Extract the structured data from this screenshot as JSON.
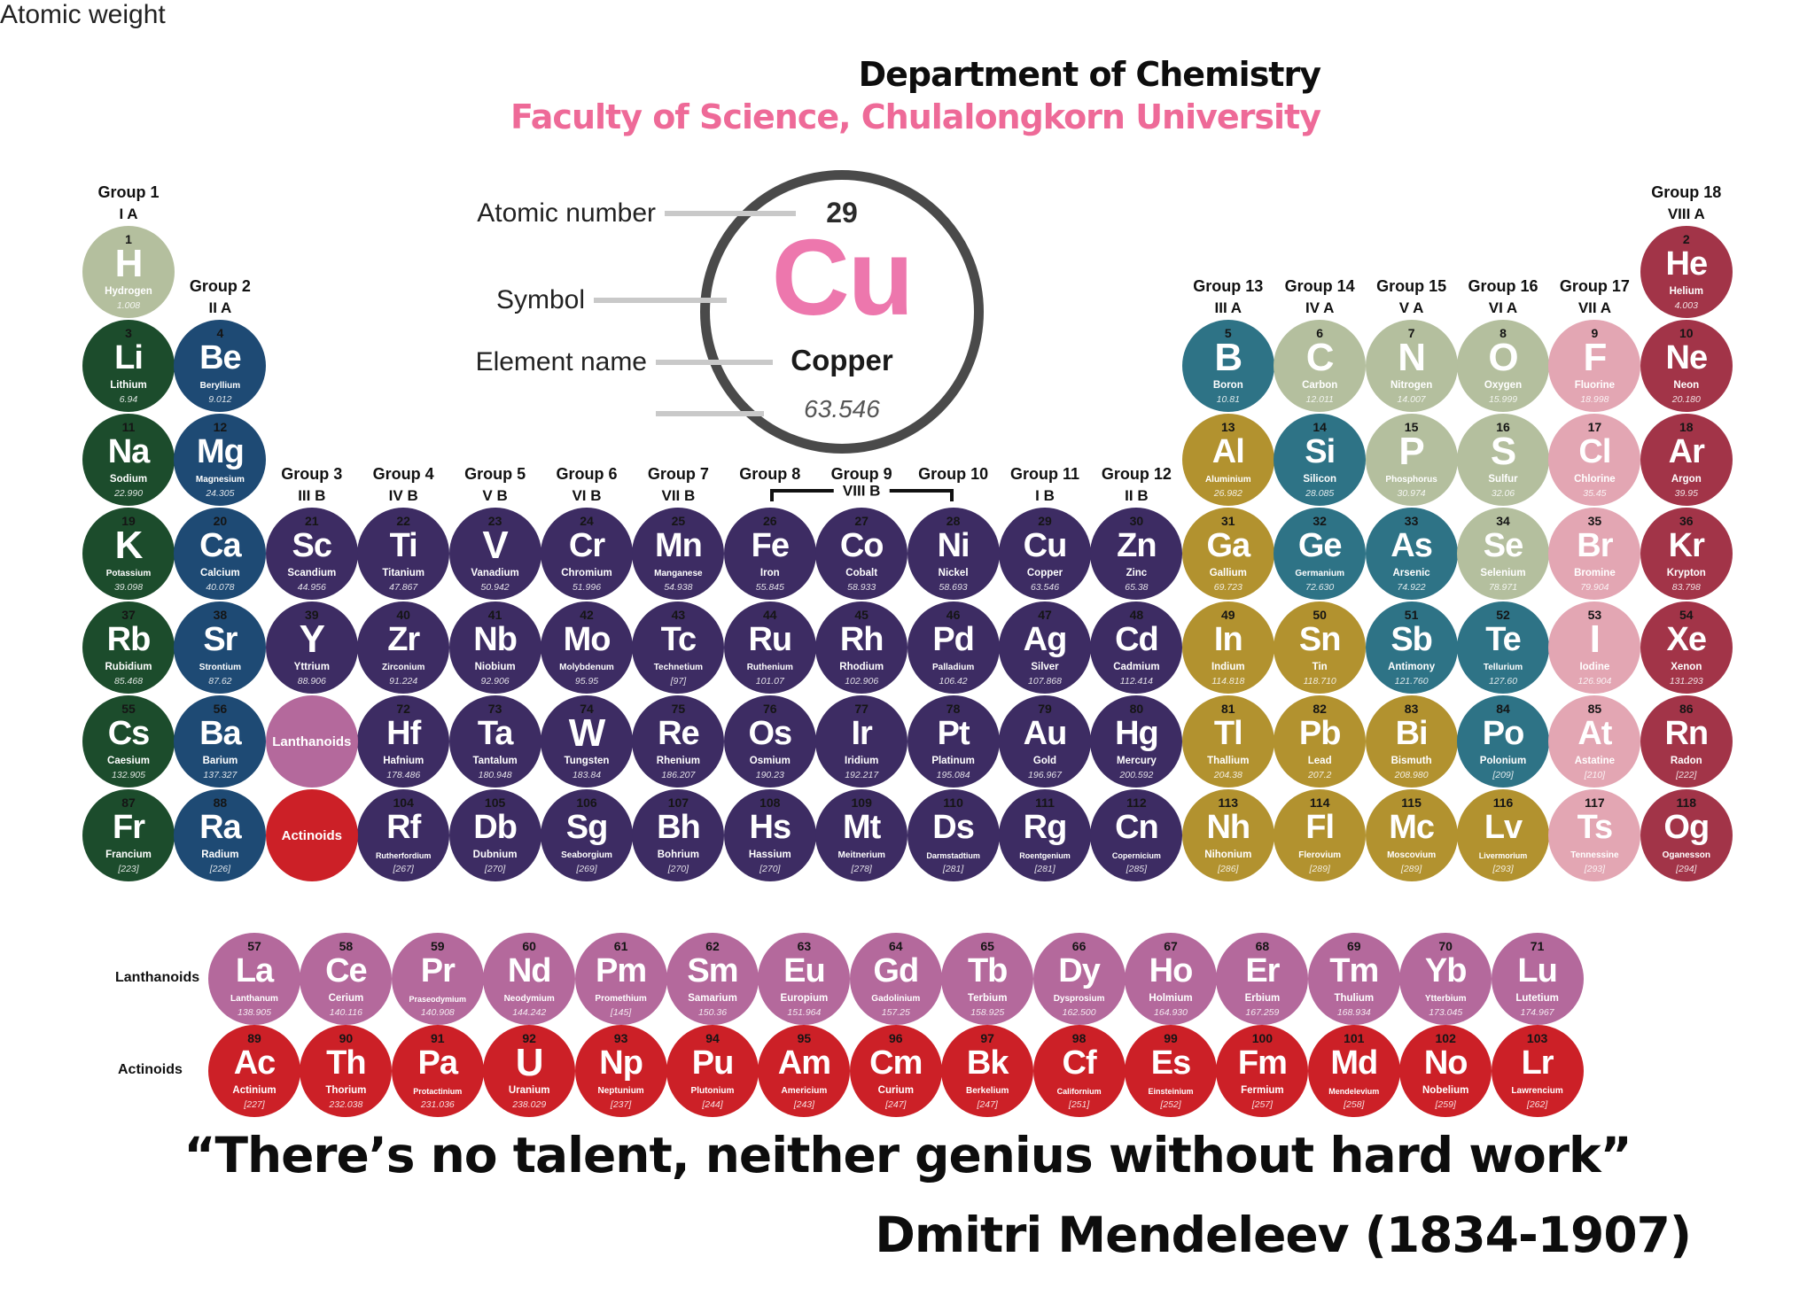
{
  "header": {
    "department": "Department of Chemistry",
    "faculty": "Faculty of Science, Chulalongkorn University"
  },
  "colors": {
    "sage": "#b4bf9e",
    "green": "#1c4c2c",
    "navy": "#1e4a74",
    "purple": "#3d2c63",
    "gold": "#b2922f",
    "teal": "#2e7386",
    "pink": "#e3a6b3",
    "maroon": "#a23448",
    "mauve": "#b4699c",
    "red": "#cc2027"
  },
  "legend": {
    "atomic_number_label": "Atomic number",
    "symbol_label": "Symbol",
    "element_name_label": "Element name",
    "atomic_weight_label": "Atomic weight",
    "number": "29",
    "symbol": "Cu",
    "name": "Copper",
    "weight": "63.546",
    "symbol_color": "#ed77ad"
  },
  "group_headers": [
    {
      "col": 1,
      "row": 1,
      "title": "Group 1",
      "sub": "I A"
    },
    {
      "col": 2,
      "row": 2,
      "title": "Group 2",
      "sub": "II A"
    },
    {
      "col": 3,
      "row": 4,
      "title": "Group 3",
      "sub": "III B"
    },
    {
      "col": 4,
      "row": 4,
      "title": "Group 4",
      "sub": "IV B"
    },
    {
      "col": 5,
      "row": 4,
      "title": "Group 5",
      "sub": "V B"
    },
    {
      "col": 6,
      "row": 4,
      "title": "Group 6",
      "sub": "VI B"
    },
    {
      "col": 7,
      "row": 4,
      "title": "Group 7",
      "sub": "VII B"
    },
    {
      "col": 8,
      "row": 4,
      "title": "Group 8",
      "sub": ""
    },
    {
      "col": 9,
      "row": 4,
      "title": "Group 9",
      "sub": ""
    },
    {
      "col": 10,
      "row": 4,
      "title": "Group 10",
      "sub": ""
    },
    {
      "col": 11,
      "row": 4,
      "title": "Group 11",
      "sub": "I B"
    },
    {
      "col": 12,
      "row": 4,
      "title": "Group 12",
      "sub": "II B"
    },
    {
      "col": 13,
      "row": 2,
      "title": "Group 13",
      "sub": "III A"
    },
    {
      "col": 14,
      "row": 2,
      "title": "Group 14",
      "sub": "IV A"
    },
    {
      "col": 15,
      "row": 2,
      "title": "Group 15",
      "sub": "V A"
    },
    {
      "col": 16,
      "row": 2,
      "title": "Group 16",
      "sub": "VI A"
    },
    {
      "col": 17,
      "row": 2,
      "title": "Group 17",
      "sub": "VII A"
    },
    {
      "col": 18,
      "row": 1,
      "title": "Group 18",
      "sub": "VIII A"
    }
  ],
  "viiib_bracket_label": "VIII B",
  "series_labels": {
    "lanthanoids": "Lanthanoids",
    "actinoids": "Actinoids"
  },
  "placeholders": [
    {
      "row": 6,
      "col": 3,
      "label": "Lanthanoids",
      "cat": "mauve"
    },
    {
      "row": 7,
      "col": 3,
      "label": "Actinoids",
      "cat": "red"
    }
  ],
  "elements": [
    {
      "n": 1,
      "s": "H",
      "name": "Hydrogen",
      "w": "1.008",
      "cat": "sage",
      "row": 1,
      "col": 1
    },
    {
      "n": 2,
      "s": "He",
      "name": "Helium",
      "w": "4.003",
      "cat": "maroon",
      "row": 1,
      "col": 18
    },
    {
      "n": 3,
      "s": "Li",
      "name": "Lithium",
      "w": "6.94",
      "cat": "green",
      "row": 2,
      "col": 1
    },
    {
      "n": 4,
      "s": "Be",
      "name": "Beryllium",
      "w": "9.012",
      "cat": "navy",
      "row": 2,
      "col": 2
    },
    {
      "n": 5,
      "s": "B",
      "name": "Boron",
      "w": "10.81",
      "cat": "teal",
      "row": 2,
      "col": 13
    },
    {
      "n": 6,
      "s": "C",
      "name": "Carbon",
      "w": "12.011",
      "cat": "sage",
      "row": 2,
      "col": 14
    },
    {
      "n": 7,
      "s": "N",
      "name": "Nitrogen",
      "w": "14.007",
      "cat": "sage",
      "row": 2,
      "col": 15
    },
    {
      "n": 8,
      "s": "O",
      "name": "Oxygen",
      "w": "15.999",
      "cat": "sage",
      "row": 2,
      "col": 16
    },
    {
      "n": 9,
      "s": "F",
      "name": "Fluorine",
      "w": "18.998",
      "cat": "pink",
      "row": 2,
      "col": 17
    },
    {
      "n": 10,
      "s": "Ne",
      "name": "Neon",
      "w": "20.180",
      "cat": "maroon",
      "row": 2,
      "col": 18
    },
    {
      "n": 11,
      "s": "Na",
      "name": "Sodium",
      "w": "22.990",
      "cat": "green",
      "row": 3,
      "col": 1
    },
    {
      "n": 12,
      "s": "Mg",
      "name": "Magnesium",
      "w": "24.305",
      "cat": "navy",
      "row": 3,
      "col": 2
    },
    {
      "n": 13,
      "s": "Al",
      "name": "Aluminium",
      "w": "26.982",
      "cat": "gold",
      "row": 3,
      "col": 13
    },
    {
      "n": 14,
      "s": "Si",
      "name": "Silicon",
      "w": "28.085",
      "cat": "teal",
      "row": 3,
      "col": 14
    },
    {
      "n": 15,
      "s": "P",
      "name": "Phosphorus",
      "w": "30.974",
      "cat": "sage",
      "row": 3,
      "col": 15
    },
    {
      "n": 16,
      "s": "S",
      "name": "Sulfur",
      "w": "32.06",
      "cat": "sage",
      "row": 3,
      "col": 16
    },
    {
      "n": 17,
      "s": "Cl",
      "name": "Chlorine",
      "w": "35.45",
      "cat": "pink",
      "row": 3,
      "col": 17
    },
    {
      "n": 18,
      "s": "Ar",
      "name": "Argon",
      "w": "39.95",
      "cat": "maroon",
      "row": 3,
      "col": 18
    },
    {
      "n": 19,
      "s": "K",
      "name": "Potassium",
      "w": "39.098",
      "cat": "green",
      "row": 4,
      "col": 1
    },
    {
      "n": 20,
      "s": "Ca",
      "name": "Calcium",
      "w": "40.078",
      "cat": "navy",
      "row": 4,
      "col": 2
    },
    {
      "n": 21,
      "s": "Sc",
      "name": "Scandium",
      "w": "44.956",
      "cat": "purple",
      "row": 4,
      "col": 3
    },
    {
      "n": 22,
      "s": "Ti",
      "name": "Titanium",
      "w": "47.867",
      "cat": "purple",
      "row": 4,
      "col": 4
    },
    {
      "n": 23,
      "s": "V",
      "name": "Vanadium",
      "w": "50.942",
      "cat": "purple",
      "row": 4,
      "col": 5
    },
    {
      "n": 24,
      "s": "Cr",
      "name": "Chromium",
      "w": "51.996",
      "cat": "purple",
      "row": 4,
      "col": 6
    },
    {
      "n": 25,
      "s": "Mn",
      "name": "Manganese",
      "w": "54.938",
      "cat": "purple",
      "row": 4,
      "col": 7
    },
    {
      "n": 26,
      "s": "Fe",
      "name": "Iron",
      "w": "55.845",
      "cat": "purple",
      "row": 4,
      "col": 8
    },
    {
      "n": 27,
      "s": "Co",
      "name": "Cobalt",
      "w": "58.933",
      "cat": "purple",
      "row": 4,
      "col": 9
    },
    {
      "n": 28,
      "s": "Ni",
      "name": "Nickel",
      "w": "58.693",
      "cat": "purple",
      "row": 4,
      "col": 10
    },
    {
      "n": 29,
      "s": "Cu",
      "name": "Copper",
      "w": "63.546",
      "cat": "purple",
      "row": 4,
      "col": 11
    },
    {
      "n": 30,
      "s": "Zn",
      "name": "Zinc",
      "w": "65.38",
      "cat": "purple",
      "row": 4,
      "col": 12
    },
    {
      "n": 31,
      "s": "Ga",
      "name": "Gallium",
      "w": "69.723",
      "cat": "gold",
      "row": 4,
      "col": 13
    },
    {
      "n": 32,
      "s": "Ge",
      "name": "Germanium",
      "w": "72.630",
      "cat": "teal",
      "row": 4,
      "col": 14
    },
    {
      "n": 33,
      "s": "As",
      "name": "Arsenic",
      "w": "74.922",
      "cat": "teal",
      "row": 4,
      "col": 15
    },
    {
      "n": 34,
      "s": "Se",
      "name": "Selenium",
      "w": "78.971",
      "cat": "sage",
      "row": 4,
      "col": 16
    },
    {
      "n": 35,
      "s": "Br",
      "name": "Bromine",
      "w": "79.904",
      "cat": "pink",
      "row": 4,
      "col": 17
    },
    {
      "n": 36,
      "s": "Kr",
      "name": "Krypton",
      "w": "83.798",
      "cat": "maroon",
      "row": 4,
      "col": 18
    },
    {
      "n": 37,
      "s": "Rb",
      "name": "Rubidium",
      "w": "85.468",
      "cat": "green",
      "row": 5,
      "col": 1
    },
    {
      "n": 38,
      "s": "Sr",
      "name": "Strontium",
      "w": "87.62",
      "cat": "navy",
      "row": 5,
      "col": 2
    },
    {
      "n": 39,
      "s": "Y",
      "name": "Yttrium",
      "w": "88.906",
      "cat": "purple",
      "row": 5,
      "col": 3
    },
    {
      "n": 40,
      "s": "Zr",
      "name": "Zirconium",
      "w": "91.224",
      "cat": "purple",
      "row": 5,
      "col": 4
    },
    {
      "n": 41,
      "s": "Nb",
      "name": "Niobium",
      "w": "92.906",
      "cat": "purple",
      "row": 5,
      "col": 5
    },
    {
      "n": 42,
      "s": "Mo",
      "name": "Molybdenum",
      "w": "95.95",
      "cat": "purple",
      "row": 5,
      "col": 6
    },
    {
      "n": 43,
      "s": "Tc",
      "name": "Technetium",
      "w": "[97]",
      "cat": "purple",
      "row": 5,
      "col": 7
    },
    {
      "n": 44,
      "s": "Ru",
      "name": "Ruthenium",
      "w": "101.07",
      "cat": "purple",
      "row": 5,
      "col": 8
    },
    {
      "n": 45,
      "s": "Rh",
      "name": "Rhodium",
      "w": "102.906",
      "cat": "purple",
      "row": 5,
      "col": 9
    },
    {
      "n": 46,
      "s": "Pd",
      "name": "Palladium",
      "w": "106.42",
      "cat": "purple",
      "row": 5,
      "col": 10
    },
    {
      "n": 47,
      "s": "Ag",
      "name": "Silver",
      "w": "107.868",
      "cat": "purple",
      "row": 5,
      "col": 11
    },
    {
      "n": 48,
      "s": "Cd",
      "name": "Cadmium",
      "w": "112.414",
      "cat": "purple",
      "row": 5,
      "col": 12
    },
    {
      "n": 49,
      "s": "In",
      "name": "Indium",
      "w": "114.818",
      "cat": "gold",
      "row": 5,
      "col": 13
    },
    {
      "n": 50,
      "s": "Sn",
      "name": "Tin",
      "w": "118.710",
      "cat": "gold",
      "row": 5,
      "col": 14
    },
    {
      "n": 51,
      "s": "Sb",
      "name": "Antimony",
      "w": "121.760",
      "cat": "teal",
      "row": 5,
      "col": 15
    },
    {
      "n": 52,
      "s": "Te",
      "name": "Tellurium",
      "w": "127.60",
      "cat": "teal",
      "row": 5,
      "col": 16
    },
    {
      "n": 53,
      "s": "I",
      "name": "Iodine",
      "w": "126.904",
      "cat": "pink",
      "row": 5,
      "col": 17
    },
    {
      "n": 54,
      "s": "Xe",
      "name": "Xenon",
      "w": "131.293",
      "cat": "maroon",
      "row": 5,
      "col": 18
    },
    {
      "n": 55,
      "s": "Cs",
      "name": "Caesium",
      "w": "132.905",
      "cat": "green",
      "row": 6,
      "col": 1
    },
    {
      "n": 56,
      "s": "Ba",
      "name": "Barium",
      "w": "137.327",
      "cat": "navy",
      "row": 6,
      "col": 2
    },
    {
      "n": 72,
      "s": "Hf",
      "name": "Hafnium",
      "w": "178.486",
      "cat": "purple",
      "row": 6,
      "col": 4
    },
    {
      "n": 73,
      "s": "Ta",
      "name": "Tantalum",
      "w": "180.948",
      "cat": "purple",
      "row": 6,
      "col": 5
    },
    {
      "n": 74,
      "s": "W",
      "name": "Tungsten",
      "w": "183.84",
      "cat": "purple",
      "row": 6,
      "col": 6
    },
    {
      "n": 75,
      "s": "Re",
      "name": "Rhenium",
      "w": "186.207",
      "cat": "purple",
      "row": 6,
      "col": 7
    },
    {
      "n": 76,
      "s": "Os",
      "name": "Osmium",
      "w": "190.23",
      "cat": "purple",
      "row": 6,
      "col": 8
    },
    {
      "n": 77,
      "s": "Ir",
      "name": "Iridium",
      "w": "192.217",
      "cat": "purple",
      "row": 6,
      "col": 9
    },
    {
      "n": 78,
      "s": "Pt",
      "name": "Platinum",
      "w": "195.084",
      "cat": "purple",
      "row": 6,
      "col": 10
    },
    {
      "n": 79,
      "s": "Au",
      "name": "Gold",
      "w": "196.967",
      "cat": "purple",
      "row": 6,
      "col": 11
    },
    {
      "n": 80,
      "s": "Hg",
      "name": "Mercury",
      "w": "200.592",
      "cat": "purple",
      "row": 6,
      "col": 12
    },
    {
      "n": 81,
      "s": "Tl",
      "name": "Thallium",
      "w": "204.38",
      "cat": "gold",
      "row": 6,
      "col": 13
    },
    {
      "n": 82,
      "s": "Pb",
      "name": "Lead",
      "w": "207.2",
      "cat": "gold",
      "row": 6,
      "col": 14
    },
    {
      "n": 83,
      "s": "Bi",
      "name": "Bismuth",
      "w": "208.980",
      "cat": "gold",
      "row": 6,
      "col": 15
    },
    {
      "n": 84,
      "s": "Po",
      "name": "Polonium",
      "w": "[209]",
      "cat": "teal",
      "row": 6,
      "col": 16
    },
    {
      "n": 85,
      "s": "At",
      "name": "Astatine",
      "w": "[210]",
      "cat": "pink",
      "row": 6,
      "col": 17
    },
    {
      "n": 86,
      "s": "Rn",
      "name": "Radon",
      "w": "[222]",
      "cat": "maroon",
      "row": 6,
      "col": 18
    },
    {
      "n": 87,
      "s": "Fr",
      "name": "Francium",
      "w": "[223]",
      "cat": "green",
      "row": 7,
      "col": 1
    },
    {
      "n": 88,
      "s": "Ra",
      "name": "Radium",
      "w": "[226]",
      "cat": "navy",
      "row": 7,
      "col": 2
    },
    {
      "n": 104,
      "s": "Rf",
      "name": "Rutherfordium",
      "w": "[267]",
      "cat": "purple",
      "row": 7,
      "col": 4
    },
    {
      "n": 105,
      "s": "Db",
      "name": "Dubnium",
      "w": "[270]",
      "cat": "purple",
      "row": 7,
      "col": 5
    },
    {
      "n": 106,
      "s": "Sg",
      "name": "Seaborgium",
      "w": "[269]",
      "cat": "purple",
      "row": 7,
      "col": 6
    },
    {
      "n": 107,
      "s": "Bh",
      "name": "Bohrium",
      "w": "[270]",
      "cat": "purple",
      "row": 7,
      "col": 7
    },
    {
      "n": 108,
      "s": "Hs",
      "name": "Hassium",
      "w": "[270]",
      "cat": "purple",
      "row": 7,
      "col": 8
    },
    {
      "n": 109,
      "s": "Mt",
      "name": "Meitnerium",
      "w": "[278]",
      "cat": "purple",
      "row": 7,
      "col": 9
    },
    {
      "n": 110,
      "s": "Ds",
      "name": "Darmstadtium",
      "w": "[281]",
      "cat": "purple",
      "row": 7,
      "col": 10
    },
    {
      "n": 111,
      "s": "Rg",
      "name": "Roentgenium",
      "w": "[281]",
      "cat": "purple",
      "row": 7,
      "col": 11
    },
    {
      "n": 112,
      "s": "Cn",
      "name": "Copernicium",
      "w": "[285]",
      "cat": "purple",
      "row": 7,
      "col": 12
    },
    {
      "n": 113,
      "s": "Nh",
      "name": "Nihonium",
      "w": "[286]",
      "cat": "gold",
      "row": 7,
      "col": 13
    },
    {
      "n": 114,
      "s": "Fl",
      "name": "Flerovium",
      "w": "[289]",
      "cat": "gold",
      "row": 7,
      "col": 14
    },
    {
      "n": 115,
      "s": "Mc",
      "name": "Moscovium",
      "w": "[289]",
      "cat": "gold",
      "row": 7,
      "col": 15
    },
    {
      "n": 116,
      "s": "Lv",
      "name": "Livermorium",
      "w": "[293]",
      "cat": "gold",
      "row": 7,
      "col": 16
    },
    {
      "n": 117,
      "s": "Ts",
      "name": "Tennessine",
      "w": "[293]",
      "cat": "pink",
      "row": 7,
      "col": 17
    },
    {
      "n": 118,
      "s": "Og",
      "name": "Oganesson",
      "w": "[294]",
      "cat": "maroon",
      "row": 7,
      "col": 18
    }
  ],
  "lanthanoids": [
    {
      "n": 57,
      "s": "La",
      "name": "Lanthanum",
      "w": "138.905",
      "cat": "mauve"
    },
    {
      "n": 58,
      "s": "Ce",
      "name": "Cerium",
      "w": "140.116",
      "cat": "mauve"
    },
    {
      "n": 59,
      "s": "Pr",
      "name": "Praseodymium",
      "w": "140.908",
      "cat": "mauve"
    },
    {
      "n": 60,
      "s": "Nd",
      "name": "Neodymium",
      "w": "144.242",
      "cat": "mauve"
    },
    {
      "n": 61,
      "s": "Pm",
      "name": "Promethium",
      "w": "[145]",
      "cat": "mauve"
    },
    {
      "n": 62,
      "s": "Sm",
      "name": "Samarium",
      "w": "150.36",
      "cat": "mauve"
    },
    {
      "n": 63,
      "s": "Eu",
      "name": "Europium",
      "w": "151.964",
      "cat": "mauve"
    },
    {
      "n": 64,
      "s": "Gd",
      "name": "Gadolinium",
      "w": "157.25",
      "cat": "mauve"
    },
    {
      "n": 65,
      "s": "Tb",
      "name": "Terbium",
      "w": "158.925",
      "cat": "mauve"
    },
    {
      "n": 66,
      "s": "Dy",
      "name": "Dysprosium",
      "w": "162.500",
      "cat": "mauve"
    },
    {
      "n": 67,
      "s": "Ho",
      "name": "Holmium",
      "w": "164.930",
      "cat": "mauve"
    },
    {
      "n": 68,
      "s": "Er",
      "name": "Erbium",
      "w": "167.259",
      "cat": "mauve"
    },
    {
      "n": 69,
      "s": "Tm",
      "name": "Thulium",
      "w": "168.934",
      "cat": "mauve"
    },
    {
      "n": 70,
      "s": "Yb",
      "name": "Ytterbium",
      "w": "173.045",
      "cat": "mauve"
    },
    {
      "n": 71,
      "s": "Lu",
      "name": "Lutetium",
      "w": "174.967",
      "cat": "mauve"
    }
  ],
  "actinoids": [
    {
      "n": 89,
      "s": "Ac",
      "name": "Actinium",
      "w": "[227]",
      "cat": "red"
    },
    {
      "n": 90,
      "s": "Th",
      "name": "Thorium",
      "w": "232.038",
      "cat": "red"
    },
    {
      "n": 91,
      "s": "Pa",
      "name": "Protactinium",
      "w": "231.036",
      "cat": "red"
    },
    {
      "n": 92,
      "s": "U",
      "name": "Uranium",
      "w": "238.029",
      "cat": "red"
    },
    {
      "n": 93,
      "s": "Np",
      "name": "Neptunium",
      "w": "[237]",
      "cat": "red"
    },
    {
      "n": 94,
      "s": "Pu",
      "name": "Plutonium",
      "w": "[244]",
      "cat": "red"
    },
    {
      "n": 95,
      "s": "Am",
      "name": "Americium",
      "w": "[243]",
      "cat": "red"
    },
    {
      "n": 96,
      "s": "Cm",
      "name": "Curium",
      "w": "[247]",
      "cat": "red"
    },
    {
      "n": 97,
      "s": "Bk",
      "name": "Berkelium",
      "w": "[247]",
      "cat": "red"
    },
    {
      "n": 98,
      "s": "Cf",
      "name": "Californium",
      "w": "[251]",
      "cat": "red"
    },
    {
      "n": 99,
      "s": "Es",
      "name": "Einsteinium",
      "w": "[252]",
      "cat": "red"
    },
    {
      "n": 100,
      "s": "Fm",
      "name": "Fermium",
      "w": "[257]",
      "cat": "red"
    },
    {
      "n": 101,
      "s": "Md",
      "name": "Mendelevium",
      "w": "[258]",
      "cat": "red"
    },
    {
      "n": 102,
      "s": "No",
      "name": "Nobelium",
      "w": "[259]",
      "cat": "red"
    },
    {
      "n": 103,
      "s": "Lr",
      "name": "Lawrencium",
      "w": "[262]",
      "cat": "red"
    }
  ],
  "footer": {
    "quote": "“There’s no talent, neither genius without hard work”",
    "attribution": "Dmitri Mendeleev (1834-1907)"
  }
}
